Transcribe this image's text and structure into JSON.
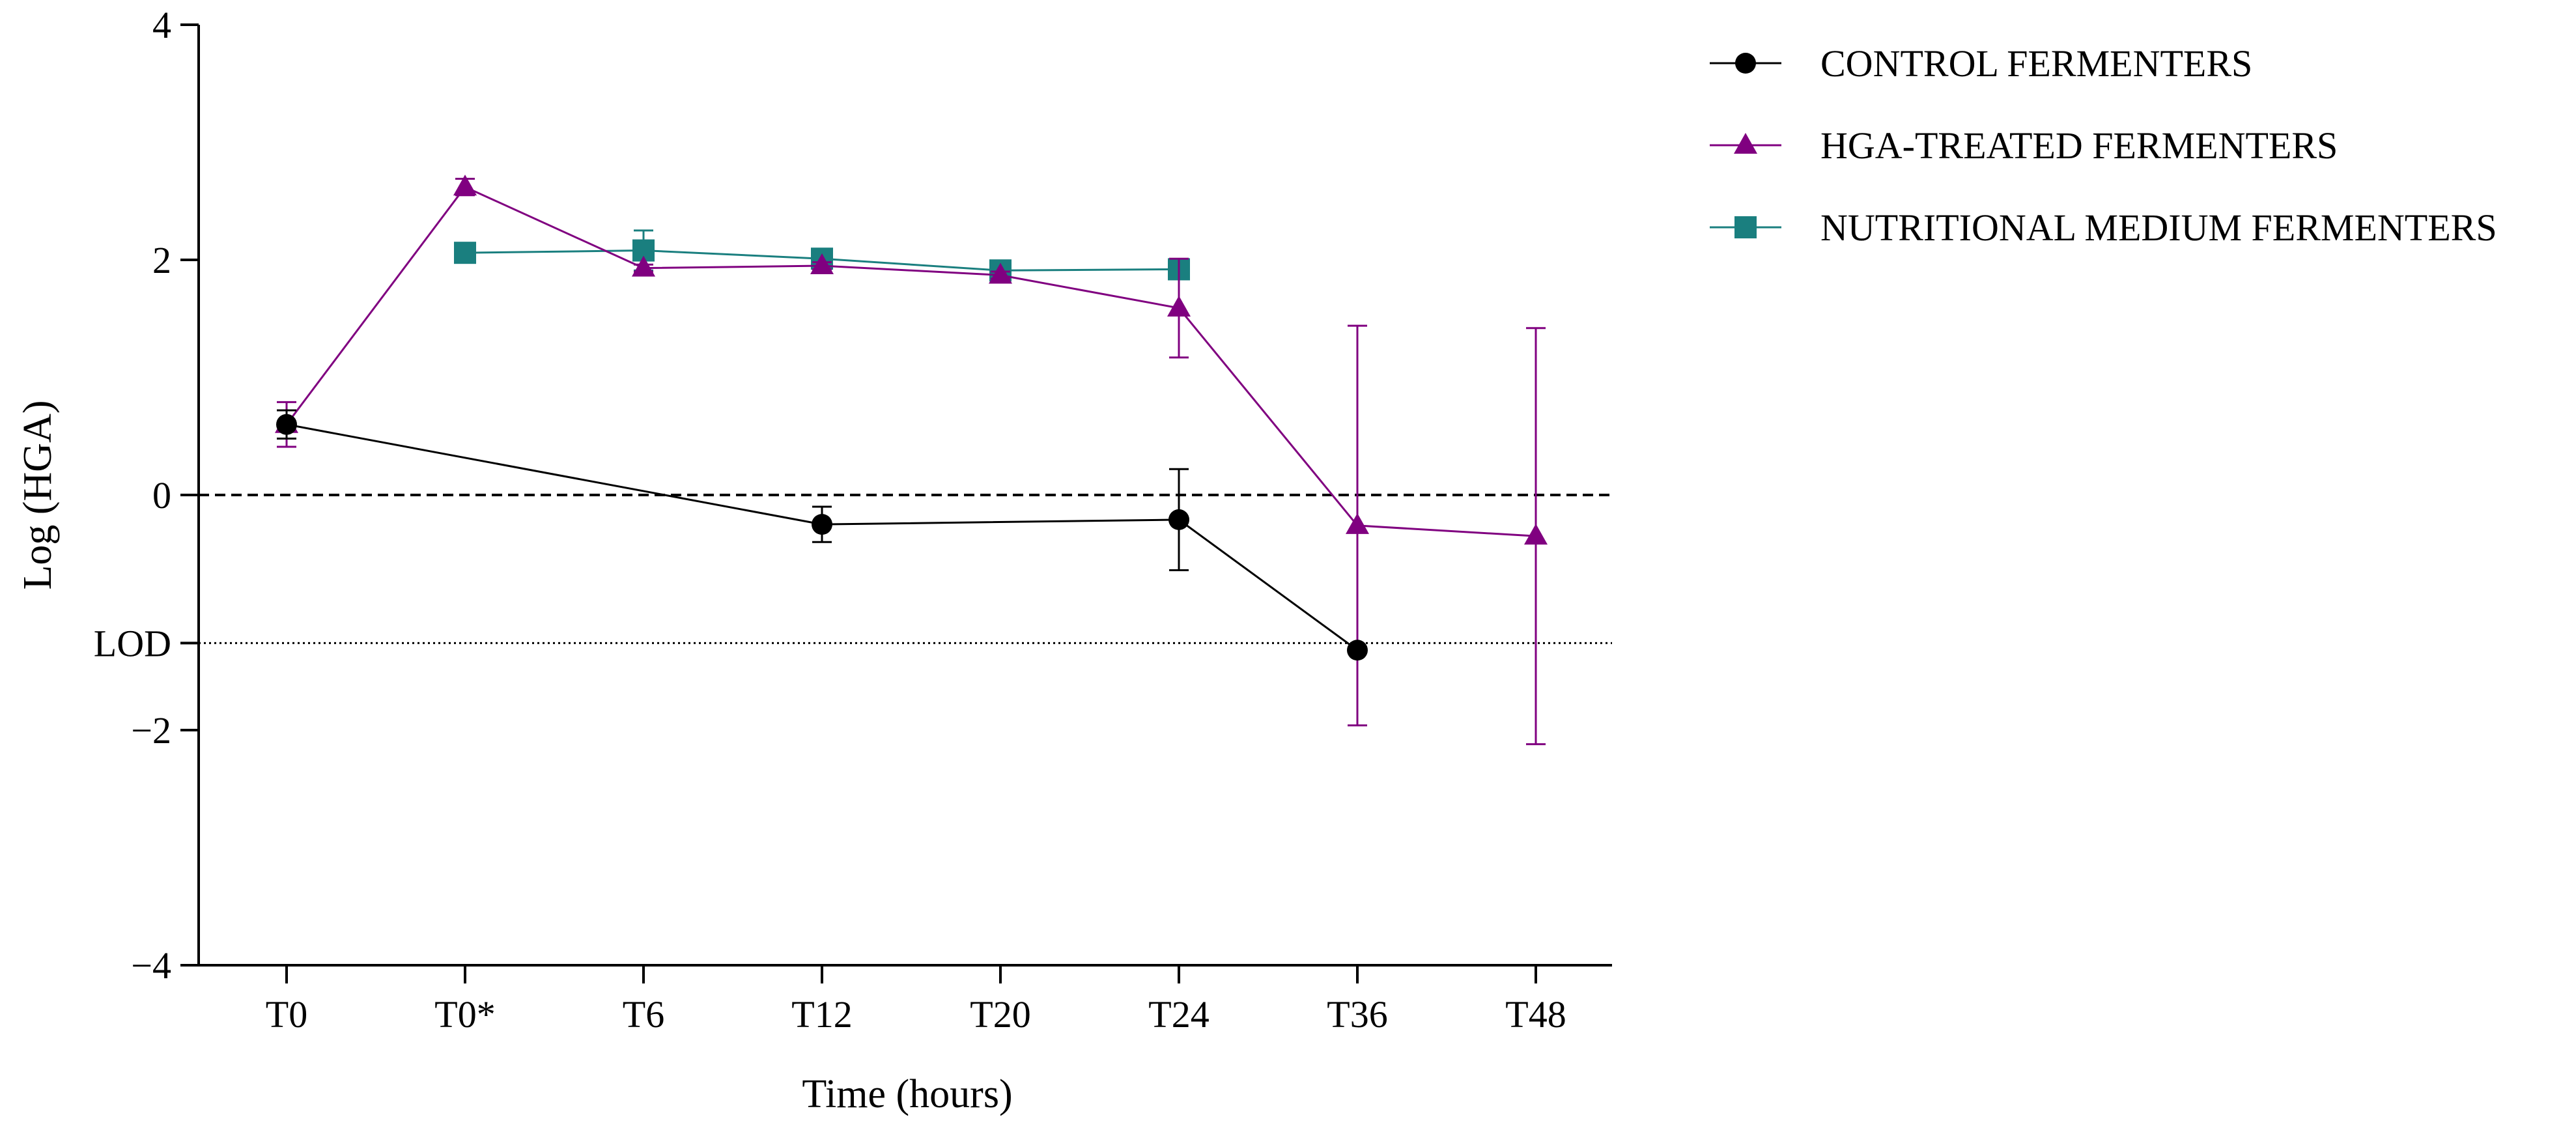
{
  "chart_data": {
    "type": "line",
    "title": "",
    "xlabel": "Time (hours)",
    "ylabel": "Log (HGA)",
    "categories": [
      "T0",
      "T0*",
      "T6",
      "T12",
      "T20",
      "T24",
      "T36",
      "T48"
    ],
    "ylim": [
      -4,
      4
    ],
    "y_ticks": [
      {
        "value": 4,
        "label": "4"
      },
      {
        "value": 2,
        "label": "2"
      },
      {
        "value": 0,
        "label": "0"
      },
      {
        "value": -2,
        "label": "−2"
      },
      {
        "value": -4,
        "label": "−4"
      }
    ],
    "reference_lines": [
      {
        "name": "zero-line",
        "value": 0,
        "style": "dashed",
        "label": ""
      },
      {
        "name": "lod-line",
        "value": -1.26,
        "style": "dotted",
        "label": "LOD"
      }
    ],
    "legend_position": "top-right",
    "series": [
      {
        "name": "CONTROL FERMENTERS",
        "color": "#000000",
        "marker": "circle",
        "points": [
          {
            "x": "T0",
            "y": 0.6,
            "err": 0.12
          },
          {
            "x": "T12",
            "y": -0.25,
            "err": 0.15
          },
          {
            "x": "T24",
            "y": -0.21,
            "err": 0.43
          },
          {
            "x": "T36",
            "y": -1.32,
            "err": 0
          }
        ]
      },
      {
        "name": "HGA-TREATED FERMENTERS",
        "color": "#800080",
        "marker": "triangle",
        "points": [
          {
            "x": "T0",
            "y": 0.6,
            "err": 0.19
          },
          {
            "x": "T0*",
            "y": 2.62,
            "err": 0.07
          },
          {
            "x": "T6",
            "y": 1.93,
            "err": 0.03
          },
          {
            "x": "T12",
            "y": 1.95,
            "err": 0.03
          },
          {
            "x": "T20",
            "y": 1.87,
            "err": 0.03
          },
          {
            "x": "T24",
            "y": 1.59,
            "err": 0.42
          },
          {
            "x": "T36",
            "y": -0.26,
            "err": 1.7
          },
          {
            "x": "T48",
            "y": -0.35,
            "err": 1.77
          }
        ]
      },
      {
        "name": "NUTRITIONAL MEDIUM FERMENTERS",
        "color": "#1a7f7f",
        "marker": "square",
        "points": [
          {
            "x": "T0*",
            "y": 2.06,
            "err": 0
          },
          {
            "x": "T6",
            "y": 2.08,
            "err": 0.17
          },
          {
            "x": "T12",
            "y": 2.01,
            "err": 0.03
          },
          {
            "x": "T20",
            "y": 1.91,
            "err": 0.03
          },
          {
            "x": "T24",
            "y": 1.92,
            "err": 0.03
          }
        ]
      }
    ]
  }
}
